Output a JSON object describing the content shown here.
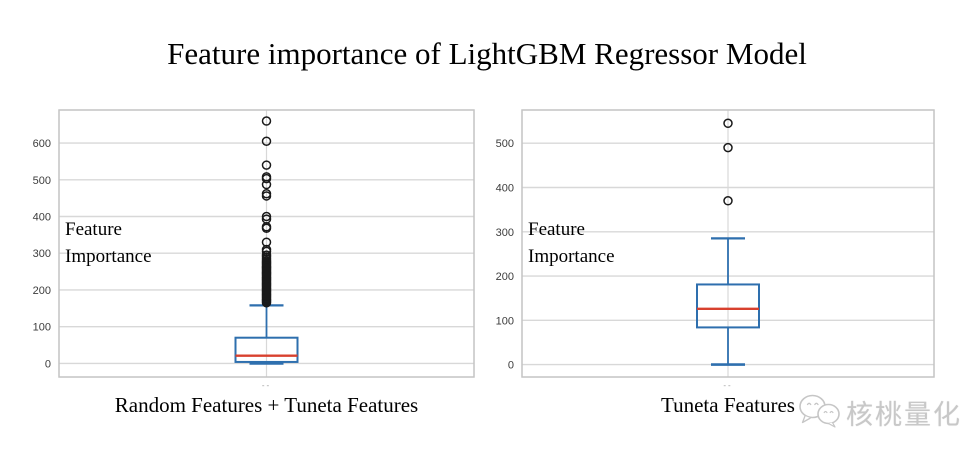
{
  "title": "Feature importance of LightGBM Regressor Model",
  "watermark": {
    "brand": "核桃量化",
    "icon": "wechat-icon"
  },
  "colors": {
    "box_stroke": "#2e6fae",
    "median": "#d8402e",
    "whisker": "#2e6fae",
    "outlier": "#1a1a1a",
    "grid": "#d8d8d8",
    "panel_border": "#c4c4c4",
    "tick_text": "#3c3c3c",
    "annotation_text": "#000000",
    "watermark_text": "#c8c8c8"
  },
  "chart_data": [
    {
      "type": "boxplot",
      "xlabel": "Random Features + Tuneta Features",
      "annotation_line1": "Feature",
      "annotation_line2": "Importance",
      "x_tick_label": "--",
      "yticks": [
        0,
        100,
        200,
        300,
        400,
        500,
        600
      ],
      "ylim": [
        -37,
        690
      ],
      "grid": "on",
      "box": {
        "whisker_low": 0,
        "q1": 4,
        "median": 21,
        "q3": 70,
        "whisker_high": 158
      },
      "outliers": [
        165,
        168,
        171,
        174,
        177,
        180,
        183,
        186,
        189,
        192,
        195,
        198,
        201,
        204,
        207,
        210,
        213,
        216,
        219,
        222,
        225,
        228,
        231,
        234,
        237,
        240,
        243,
        246,
        249,
        252,
        255,
        258,
        261,
        264,
        267,
        270,
        273,
        276,
        280,
        285,
        290,
        295,
        305,
        310,
        330,
        368,
        372,
        393,
        400,
        456,
        462,
        487,
        503,
        508,
        540,
        605,
        660
      ]
    },
    {
      "type": "boxplot",
      "xlabel": "Tuneta Features",
      "annotation_line1": "Feature",
      "annotation_line2": "Importance",
      "x_tick_label": "--",
      "yticks": [
        0,
        100,
        200,
        300,
        400,
        500
      ],
      "ylim": [
        -28,
        575
      ],
      "grid": "on",
      "box": {
        "whisker_low": 0,
        "q1": 84,
        "median": 126,
        "q3": 181,
        "whisker_high": 285
      },
      "outliers": [
        370,
        490,
        545
      ]
    }
  ]
}
